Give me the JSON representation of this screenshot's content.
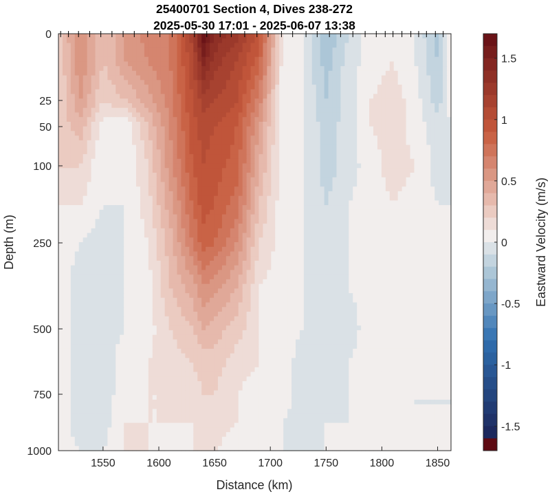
{
  "chart_data": {
    "type": "heatmap",
    "title_lines": [
      "25400701 Section 4, Dives 238-272",
      "2025-05-30 17:01 - 2025-06-07 13:38"
    ],
    "xlabel": "Distance (km)",
    "ylabel": "Depth (m)",
    "colorbar_label": "Eastward Velocity (m/s)",
    "xlim": [
      1510,
      1862
    ],
    "x_ticks": [
      1550,
      1600,
      1650,
      1700,
      1750,
      1800,
      1850
    ],
    "x_tick_labels": [
      "1550",
      "1600",
      "1650",
      "1700",
      "1750",
      "1800",
      "1850"
    ],
    "y_ticks": [
      0,
      25,
      50,
      100,
      250,
      500,
      750,
      1000
    ],
    "y_tick_labels": [
      "0",
      "25",
      "50",
      "100",
      "250",
      "500",
      "750",
      "1000"
    ],
    "y_axis_note": "nonlinear depth scale (expanded near surface)",
    "clim": [
      -1.7,
      1.7
    ],
    "cbar_ticks": [
      1.5,
      1,
      0.5,
      0,
      -0.5,
      -1,
      -1.5
    ],
    "cbar_tick_labels": [
      "1.5",
      "1",
      "0.5",
      "0",
      "-0.5",
      "-1",
      "-1.5"
    ],
    "colormap": {
      "neg_end": "#1a1f52",
      "neg_mid": "#2f6fb0",
      "neg_light": "#b7cedb",
      "zero": "#f2eeed",
      "pos_light": "#e9c2b6",
      "pos_mid": "#c65a3c",
      "pos_end": "#5e0a12"
    },
    "dive_marker_distances": [
      1512,
      1519,
      1528,
      1538,
      1548,
      1558,
      1568,
      1578,
      1590,
      1601,
      1612,
      1622,
      1632,
      1643,
      1655,
      1665,
      1677,
      1688,
      1698,
      1710,
      1720,
      1732,
      1742,
      1753,
      1763,
      1774,
      1785,
      1795,
      1803,
      1810,
      1818,
      1826,
      1833,
      1840,
      1848,
      1855
    ],
    "depth_levels": [
      0,
      10,
      25,
      50,
      100,
      175,
      250,
      375,
      500,
      625,
      750,
      875,
      1000
    ],
    "profile_distances": [
      1510,
      1530,
      1550,
      1570,
      1590,
      1610,
      1630,
      1640,
      1650,
      1670,
      1690,
      1710,
      1730,
      1750,
      1770,
      1790,
      1810,
      1830,
      1850,
      1862
    ],
    "eastward_velocity_grid": [
      [
        0.2,
        0.55,
        0.25,
        0.45,
        0.6,
        0.65,
        1.1,
        1.65,
        1.35,
        1.2,
        0.9,
        0.05,
        -0.05,
        -0.35,
        -0.15,
        0.0,
        -0.05,
        -0.05,
        -0.3,
        0.0
      ],
      [
        0.15,
        0.55,
        0.25,
        0.45,
        0.55,
        0.65,
        1.0,
        1.4,
        1.2,
        1.05,
        0.8,
        0.05,
        -0.05,
        -0.3,
        -0.1,
        0.0,
        0.05,
        -0.05,
        -0.25,
        0.0
      ],
      [
        0.15,
        0.45,
        0.15,
        0.25,
        0.4,
        0.6,
        0.95,
        1.1,
        1.05,
        0.95,
        0.6,
        0.0,
        -0.05,
        -0.25,
        -0.1,
        0.05,
        0.1,
        0.0,
        -0.2,
        0.0
      ],
      [
        0.2,
        0.3,
        0.0,
        -0.05,
        0.25,
        0.55,
        0.9,
        1.0,
        0.95,
        0.85,
        0.45,
        0.0,
        -0.05,
        -0.2,
        -0.1,
        0.05,
        0.1,
        0.0,
        -0.1,
        -0.05
      ],
      [
        0.15,
        0.15,
        -0.05,
        -0.05,
        0.15,
        0.5,
        0.85,
        0.95,
        0.9,
        0.8,
        0.35,
        0.0,
        -0.05,
        -0.2,
        -0.1,
        0.0,
        0.1,
        0.05,
        -0.1,
        -0.05
      ],
      [
        0.05,
        0.05,
        -0.05,
        -0.05,
        0.1,
        0.4,
        0.75,
        0.9,
        0.85,
        0.7,
        0.25,
        0.0,
        -0.05,
        -0.15,
        -0.05,
        0.0,
        0.05,
        0.0,
        -0.05,
        -0.05
      ],
      [
        0.0,
        -0.05,
        -0.1,
        -0.05,
        0.05,
        0.3,
        0.65,
        0.8,
        0.75,
        0.55,
        0.15,
        0.0,
        -0.05,
        -0.1,
        -0.05,
        0.0,
        0.05,
        0.0,
        -0.05,
        -0.05
      ],
      [
        0.0,
        -0.1,
        -0.1,
        -0.05,
        0.0,
        0.25,
        0.4,
        0.55,
        0.5,
        0.35,
        0.05,
        0.0,
        -0.05,
        -0.1,
        -0.05,
        0.0,
        0.05,
        0.0,
        -0.05,
        -0.05
      ],
      [
        0.0,
        -0.1,
        -0.1,
        -0.05,
        0.0,
        0.15,
        0.25,
        0.35,
        0.3,
        0.2,
        0.05,
        0.0,
        -0.05,
        -0.1,
        -0.1,
        0.0,
        0.0,
        0.0,
        -0.05,
        -0.05
      ],
      [
        0.0,
        -0.1,
        -0.1,
        0.0,
        0.05,
        0.1,
        0.15,
        0.2,
        0.2,
        0.1,
        0.05,
        0.0,
        -0.1,
        -0.1,
        -0.05,
        0.0,
        0.0,
        -0.05,
        -0.05,
        -0.05
      ],
      [
        0.0,
        -0.1,
        -0.1,
        0.0,
        0.05,
        0.05,
        0.1,
        0.15,
        0.15,
        0.05,
        0.0,
        0.0,
        -0.1,
        -0.1,
        -0.05,
        0.0,
        0.0,
        -0.05,
        -0.05,
        -0.05
      ],
      [
        0.0,
        -0.1,
        -0.1,
        0.05,
        0.05,
        0.05,
        0.05,
        0.1,
        0.1,
        0.05,
        0.0,
        -0.05,
        -0.1,
        -0.05,
        -0.05,
        0.0,
        0.0,
        -0.05,
        -0.05,
        -0.05
      ],
      [
        0.0,
        -0.05,
        -0.05,
        0.05,
        0.05,
        0.0,
        0.05,
        0.05,
        0.05,
        0.0,
        0.0,
        -0.05,
        -0.05,
        -0.05,
        -0.05,
        0.0,
        0.0,
        -0.05,
        -0.05,
        -0.05
      ]
    ]
  }
}
